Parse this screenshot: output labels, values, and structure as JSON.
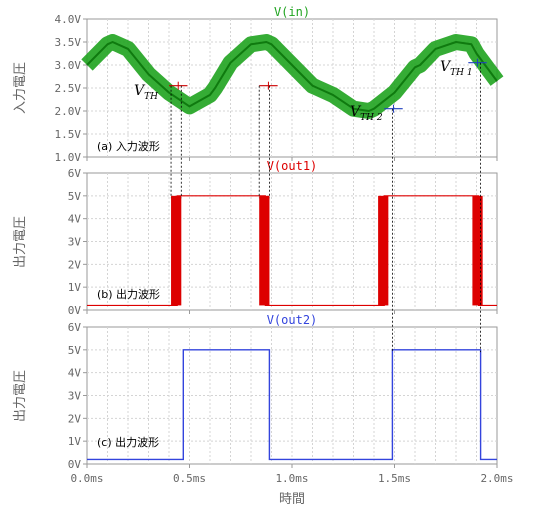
{
  "chart_data": [
    {
      "type": "line",
      "title": "V(in)",
      "annotation": "(a) 入力波形",
      "ylabel": "入力電圧",
      "ylim": [
        1.0,
        4.0
      ],
      "yticks": [
        "1.0V",
        "1.5V",
        "2.0V",
        "2.5V",
        "3.0V",
        "3.5V",
        "4.0V"
      ],
      "xlim": [
        0.0,
        2.0
      ],
      "grid": true,
      "color": "#1fa31f",
      "series": [
        {
          "x": [
            0.0,
            0.1,
            0.125,
            0.2,
            0.3,
            0.375,
            0.4,
            0.5,
            0.6,
            0.625,
            0.7,
            0.8,
            0.875,
            0.9,
            1.0,
            1.1,
            1.125,
            1.2,
            1.3,
            1.375,
            1.4,
            1.5,
            1.6,
            1.625,
            1.7,
            1.8,
            1.875,
            1.9,
            2.0
          ],
          "y": [
            3.0,
            3.45,
            3.5,
            3.35,
            2.8,
            2.5,
            2.4,
            2.1,
            2.35,
            2.5,
            3.05,
            3.45,
            3.5,
            3.45,
            3.0,
            2.55,
            2.5,
            2.35,
            2.05,
            2.0,
            2.05,
            2.4,
            2.95,
            3.0,
            3.35,
            3.5,
            3.45,
            3.25,
            2.65
          ]
        }
      ],
      "thresholds": [
        {
          "label": "V",
          "sub": "TH",
          "y": 2.55,
          "x_ranges": [
            [
              0.4,
              0.49
            ],
            [
              0.84,
              0.93
            ]
          ],
          "color": "#cc0000"
        },
        {
          "label": "V",
          "sub": "TH 2",
          "y": 2.05,
          "x_ranges": [
            [
              1.45,
              1.54
            ]
          ],
          "color": "#2040c0"
        },
        {
          "label": "V",
          "sub": "TH 1",
          "y": 3.05,
          "x_ranges": [
            [
              1.86,
              1.95
            ]
          ],
          "color": "#2040c0"
        }
      ]
    },
    {
      "type": "line",
      "title": "V(out1)",
      "annotation": "(b) 出力波形",
      "ylabel": "出力電圧",
      "ylim": [
        0,
        6
      ],
      "yticks": [
        "0V",
        "1V",
        "2V",
        "3V",
        "4V",
        "5V",
        "6V"
      ],
      "xlim": [
        0.0,
        2.0
      ],
      "grid": true,
      "color": "#dd0000",
      "low": 0.2,
      "high": 5.0,
      "high_intervals": [
        [
          0.44,
          0.87
        ],
        [
          1.45,
          1.91
        ]
      ],
      "chatter_bands": [
        [
          0.41,
          0.46
        ],
        [
          0.84,
          0.89
        ],
        [
          1.42,
          1.47
        ],
        [
          1.88,
          1.93
        ]
      ]
    },
    {
      "type": "line",
      "title": "V(out2)",
      "annotation": "(c) 出力波形",
      "ylabel": "出力電圧",
      "xlabel": "時間",
      "ylim": [
        0,
        6
      ],
      "yticks": [
        "0V",
        "1V",
        "2V",
        "3V",
        "4V",
        "5V",
        "6V"
      ],
      "xticks": [
        "0.0ms",
        "0.5ms",
        "1.0ms",
        "1.5ms",
        "2.0ms"
      ],
      "xlim": [
        0.0,
        2.0
      ],
      "grid": true,
      "color": "#3344dd",
      "series": [
        {
          "x": [
            0.0,
            0.47,
            0.47,
            0.89,
            0.89,
            1.49,
            1.49,
            1.92,
            1.92,
            2.0
          ],
          "y": [
            0.2,
            0.2,
            5.0,
            5.0,
            0.2,
            0.2,
            5.0,
            5.0,
            0.2,
            0.2
          ]
        }
      ],
      "switch_times": [
        0.47,
        0.89,
        1.49,
        1.92
      ]
    }
  ]
}
